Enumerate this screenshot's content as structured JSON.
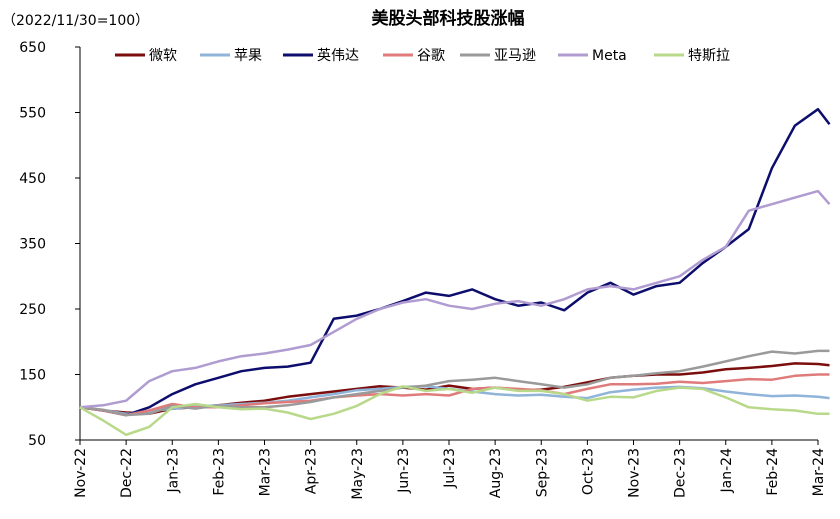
{
  "chart_data": {
    "type": "line",
    "title": "美股头部科技股涨幅",
    "unit_label": "（2022/11/30=100）",
    "xlabel": "",
    "ylabel": "",
    "ylim": [
      50,
      650
    ],
    "yticks": [
      50,
      150,
      250,
      350,
      450,
      550,
      650
    ],
    "grid": false,
    "legend_position": "top",
    "x_tick_labels": [
      "Nov-22",
      "Dec-22",
      "Jan-23",
      "Feb-23",
      "Mar-23",
      "Apr-23",
      "May-23",
      "Jun-23",
      "Jul-23",
      "Aug-23",
      "Sep-23",
      "Oct-23",
      "Nov-23",
      "Dec-23",
      "Jan-24",
      "Feb-24",
      "Mar-24"
    ],
    "x": [
      0,
      0.5,
      1,
      1.5,
      2,
      2.5,
      3,
      3.5,
      4,
      4.5,
      5,
      5.5,
      6,
      6.5,
      7,
      7.5,
      8,
      8.5,
      9,
      9.5,
      10,
      10.5,
      11,
      11.5,
      12,
      12.5,
      13,
      13.5,
      14,
      14.5,
      15,
      15.5,
      16,
      16.25
    ],
    "x_unit": "months since Nov-22 tick",
    "series": [
      {
        "name": "微软",
        "color": "#7b0d0d",
        "values": [
          100,
          95,
          92,
          90,
          98,
          100,
          103,
          107,
          110,
          116,
          120,
          124,
          128,
          132,
          130,
          127,
          133,
          128,
          130,
          126,
          127,
          131,
          138,
          145,
          148,
          150,
          150,
          153,
          158,
          160,
          163,
          167,
          166,
          164
        ]
      },
      {
        "name": "苹果",
        "color": "#8fb3d9",
        "values": [
          100,
          96,
          90,
          94,
          98,
          101,
          103,
          105,
          107,
          110,
          115,
          120,
          126,
          128,
          131,
          132,
          128,
          124,
          120,
          118,
          119,
          116,
          114,
          123,
          127,
          130,
          131,
          129,
          124,
          120,
          117,
          118,
          116,
          114
        ]
      },
      {
        "name": "英伟达",
        "color": "#0d0d6e",
        "values": [
          100,
          95,
          88,
          100,
          120,
          135,
          145,
          155,
          160,
          162,
          168,
          235,
          240,
          250,
          262,
          275,
          270,
          280,
          265,
          255,
          260,
          248,
          275,
          290,
          272,
          285,
          290,
          320,
          345,
          372,
          465,
          530,
          555,
          532
        ]
      },
      {
        "name": "谷歌",
        "color": "#e07b7b",
        "values": [
          100,
          95,
          88,
          95,
          105,
          100,
          100,
          103,
          106,
          108,
          110,
          115,
          118,
          120,
          118,
          120,
          118,
          128,
          130,
          128,
          126,
          120,
          128,
          135,
          135,
          136,
          139,
          137,
          140,
          143,
          142,
          148,
          150,
          150
        ]
      },
      {
        "name": "亚马逊",
        "color": "#9a9a9a",
        "values": [
          100,
          96,
          88,
          90,
          102,
          98,
          103,
          100,
          100,
          103,
          108,
          115,
          120,
          125,
          130,
          133,
          140,
          142,
          145,
          140,
          135,
          130,
          135,
          145,
          148,
          152,
          155,
          162,
          170,
          178,
          185,
          182,
          186,
          186
        ]
      },
      {
        "name": "Meta",
        "color": "#b09cd0",
        "values": [
          100,
          103,
          110,
          140,
          155,
          160,
          170,
          178,
          182,
          188,
          195,
          215,
          235,
          250,
          260,
          265,
          255,
          250,
          258,
          262,
          255,
          265,
          280,
          285,
          280,
          290,
          300,
          325,
          345,
          400,
          410,
          420,
          430,
          410
        ]
      },
      {
        "name": "特斯拉",
        "color": "#b8d98a",
        "values": [
          100,
          80,
          58,
          70,
          100,
          105,
          100,
          97,
          98,
          92,
          82,
          90,
          102,
          120,
          132,
          125,
          128,
          122,
          130,
          125,
          125,
          120,
          110,
          116,
          115,
          125,
          130,
          128,
          115,
          100,
          97,
          95,
          90,
          90
        ]
      }
    ]
  }
}
